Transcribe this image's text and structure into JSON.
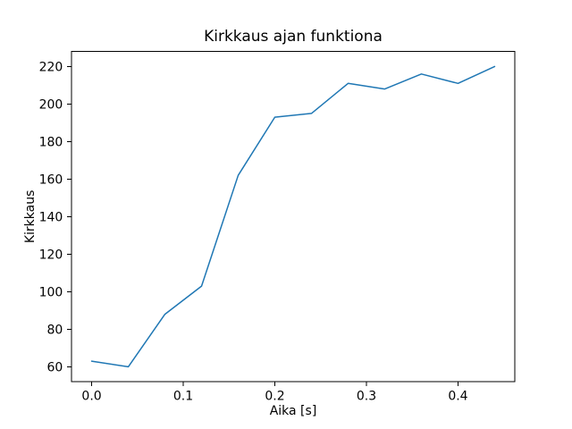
{
  "window": {
    "background_color": "#ffffff"
  },
  "chart_data": {
    "type": "line",
    "title": "Kirkkaus ajan funktiona",
    "xlabel": "Aika [s]",
    "ylabel": "Kirkkaus",
    "x": [
      0.0,
      0.04,
      0.08,
      0.12,
      0.16,
      0.2,
      0.24,
      0.28,
      0.32,
      0.36,
      0.4,
      0.44
    ],
    "y": [
      63,
      60,
      88,
      103,
      162,
      193,
      195,
      211,
      208,
      216,
      211,
      220
    ],
    "line_color": "#1f77b4",
    "axis_color": "#000000",
    "background_color": "#ffffff",
    "xlim": [
      -0.022,
      0.462
    ],
    "ylim": [
      52,
      228
    ],
    "xtick_values": [
      0.0,
      0.1,
      0.2,
      0.3,
      0.4
    ],
    "xtick_labels": [
      "0.0",
      "0.1",
      "0.2",
      "0.3",
      "0.4"
    ],
    "ytick_values": [
      60,
      80,
      100,
      120,
      140,
      160,
      180,
      200,
      220
    ],
    "ytick_labels": [
      "60",
      "80",
      "100",
      "120",
      "140",
      "160",
      "180",
      "200",
      "220"
    ],
    "grid": false,
    "markers": false,
    "legend_position": "none"
  }
}
